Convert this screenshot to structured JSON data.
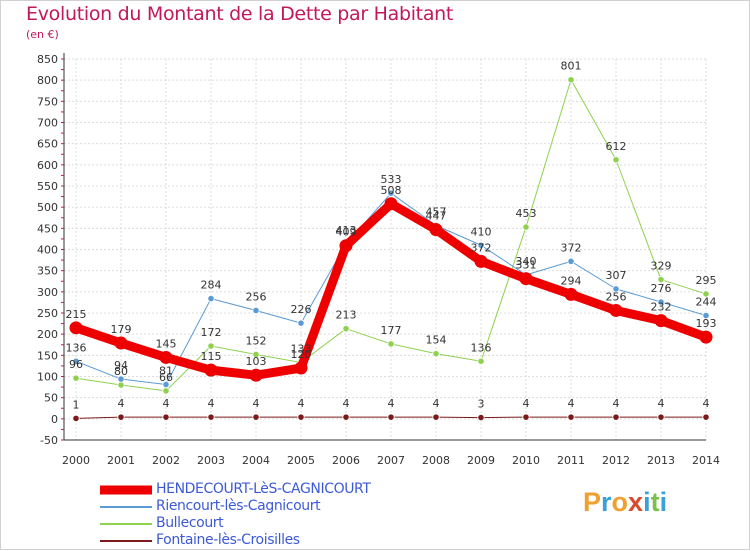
{
  "title": "Evolution du Montant de la Dette par Habitant",
  "subtitle": "(en €)",
  "logo": {
    "letters": [
      "P",
      "r",
      "o",
      "x",
      "i",
      "t",
      "i"
    ],
    "colors": [
      "#f0a030",
      "#3aa0d8",
      "#f0a030",
      "#d94a2a",
      "#3aa0d8",
      "#7cc04a",
      "#3aa0d8"
    ]
  },
  "chart_data": {
    "type": "line",
    "x": [
      "2000",
      "2001",
      "2002",
      "2003",
      "2004",
      "2005",
      "2006",
      "2007",
      "2008",
      "2009",
      "2010",
      "2011",
      "2012",
      "2013",
      "2014"
    ],
    "ylim": [
      -50,
      850
    ],
    "yticks": [
      -50,
      0,
      50,
      100,
      150,
      200,
      250,
      300,
      350,
      400,
      450,
      500,
      550,
      600,
      650,
      700,
      750,
      800,
      850
    ],
    "grid": true,
    "legend_position": "bottom-left",
    "series": [
      {
        "name": "HENDECOURT-LèS-CAGNICOURT",
        "color": "#ee0000",
        "width": 9,
        "values": [
          215,
          179,
          145,
          115,
          103,
          120,
          409,
          508,
          447,
          372,
          331,
          294,
          256,
          232,
          193
        ],
        "labels": [
          "215",
          "179",
          "145",
          "115",
          "103",
          "120",
          "409",
          "508",
          "447",
          "372",
          "331",
          "294",
          "256",
          "232",
          "193"
        ]
      },
      {
        "name": "Riencourt-lès-Cagnicourt",
        "color": "#5b9bd5",
        "width": 1,
        "values": [
          136,
          94,
          81,
          284,
          256,
          226,
          413,
          533,
          457,
          410,
          340,
          372,
          307,
          276,
          244
        ],
        "labels": [
          "136",
          "94",
          "81",
          "284",
          "256",
          "226",
          "413",
          "533",
          "457",
          "410",
          "340",
          "372",
          "307",
          "276",
          "244"
        ]
      },
      {
        "name": "Bullecourt",
        "color": "#8fd14f",
        "width": 1,
        "values": [
          96,
          80,
          66,
          172,
          152,
          133,
          213,
          177,
          154,
          136,
          453,
          801,
          612,
          329,
          295
        ],
        "labels": [
          "96",
          "80",
          "66",
          "172",
          "152",
          "133",
          "213",
          "177",
          "154",
          "136",
          "453",
          "801",
          "612",
          "329",
          "295"
        ]
      },
      {
        "name": "Fontaine-lès-Croisilles",
        "color": "#7a1a1a",
        "width": 1,
        "values": [
          1,
          4,
          4,
          4,
          4,
          4,
          4,
          4,
          4,
          3,
          4,
          4,
          4,
          4,
          4
        ],
        "labels": [
          "1",
          "4",
          "4",
          "4",
          "4",
          "4",
          "4",
          "4",
          "4",
          "3",
          "4",
          "4",
          "4",
          "4",
          "4"
        ]
      }
    ]
  }
}
